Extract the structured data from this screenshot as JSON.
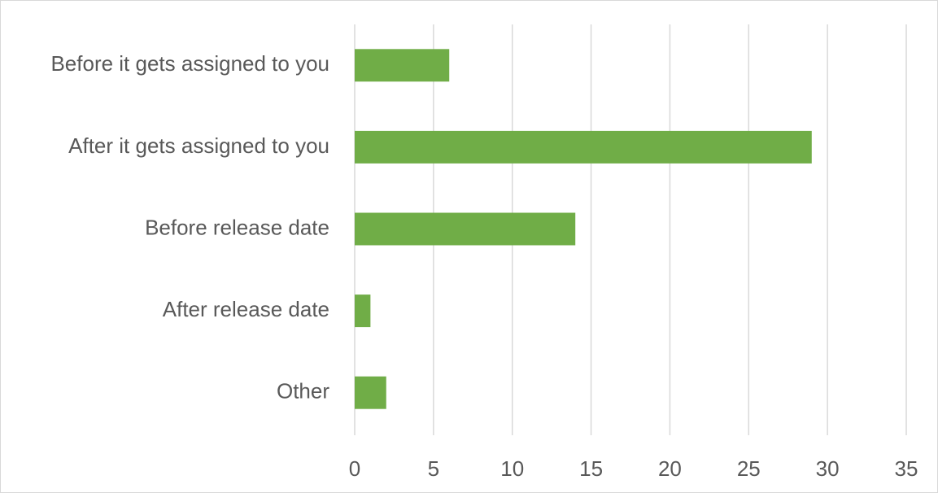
{
  "chart_data": {
    "type": "bar",
    "orientation": "horizontal",
    "categories": [
      "Before it gets assigned to you",
      "After it gets assigned to you",
      "Before release date",
      "After release date",
      "Other"
    ],
    "values": [
      6,
      29,
      14,
      1,
      2
    ],
    "color": "#70ad47",
    "xlim": [
      0,
      35
    ],
    "xticks": [
      0,
      5,
      10,
      15,
      20,
      25,
      30,
      35
    ],
    "grid": true
  }
}
